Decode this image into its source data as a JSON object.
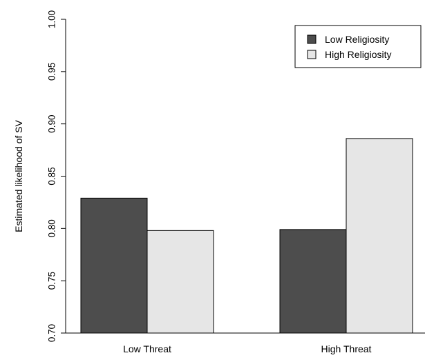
{
  "chart_data": {
    "type": "bar",
    "title": "",
    "xlabel": "",
    "ylabel": "Estimated likelihood of SV",
    "categories": [
      "Low Threat",
      "High Threat"
    ],
    "series": [
      {
        "name": "Low Religiosity",
        "values": [
          0.829,
          0.799
        ],
        "color": "#4d4d4d"
      },
      {
        "name": "High Religiosity",
        "values": [
          0.798,
          0.886
        ],
        "color": "#e6e6e6"
      }
    ],
    "ylim": [
      0.7,
      1.0
    ],
    "yticks": [
      0.7,
      0.75,
      0.8,
      0.85,
      0.9,
      0.95,
      1.0
    ],
    "ytick_labels": [
      "0.70",
      "0.75",
      "0.80",
      "0.85",
      "0.90",
      "0.95",
      "1.00"
    ],
    "grid": false,
    "legend_position": "top-right"
  }
}
